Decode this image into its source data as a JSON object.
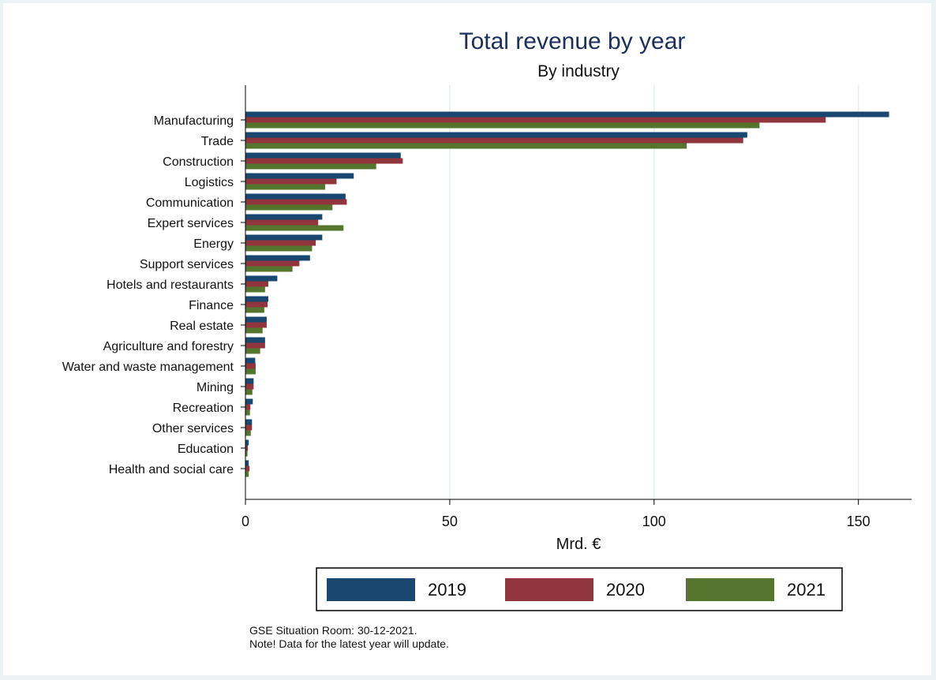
{
  "chart_data": {
    "type": "bar",
    "orientation": "horizontal",
    "title": "Total revenue by year",
    "subtitle": "By industry",
    "xlabel": "Mrd. €",
    "xlim": [
      0,
      163
    ],
    "xticks": [
      0,
      50,
      100,
      150
    ],
    "grid": true,
    "legend_position": "bottom",
    "categories": [
      "Manufacturing",
      "Trade",
      "Construction",
      "Logistics",
      "Communication",
      "Expert services",
      "Energy",
      "Support services",
      "Hotels and restaurants",
      "Finance",
      "Real estate",
      "Agriculture and forestry",
      "Water and waste management",
      "Mining",
      "Recreation",
      "Other services",
      "Education",
      "Health and social care"
    ],
    "series": [
      {
        "name": "2019",
        "color": "#1a476f",
        "values": [
          157.5,
          122.8,
          38.0,
          26.5,
          24.5,
          18.8,
          18.8,
          15.8,
          7.8,
          5.6,
          5.2,
          4.8,
          2.4,
          2.0,
          1.8,
          1.6,
          0.8,
          0.8
        ]
      },
      {
        "name": "2020",
        "color": "#90353b",
        "values": [
          142.0,
          121.8,
          38.5,
          22.3,
          24.8,
          17.8,
          17.2,
          13.2,
          5.6,
          5.4,
          5.2,
          4.8,
          2.5,
          2.0,
          1.2,
          1.6,
          0.6,
          1.0
        ]
      },
      {
        "name": "2021",
        "color": "#55752f",
        "values": [
          125.8,
          108.0,
          32.0,
          19.5,
          21.3,
          24.0,
          16.3,
          11.5,
          4.8,
          4.6,
          4.2,
          3.6,
          2.5,
          1.7,
          1.1,
          1.3,
          0.5,
          0.8
        ]
      }
    ]
  },
  "notes": {
    "line1": "GSE Situation Room: 30-12-2021.",
    "line2": "Note! Data for the latest year will update."
  }
}
